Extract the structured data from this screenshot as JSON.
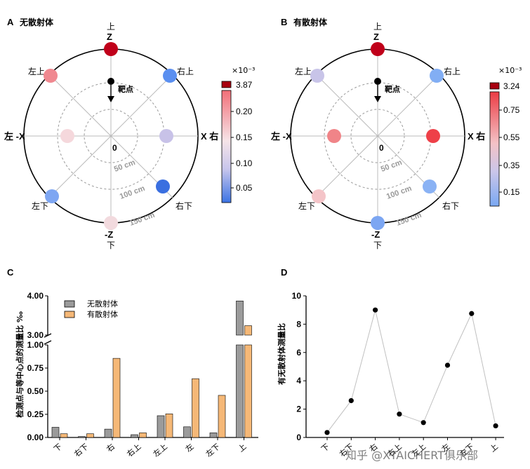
{
  "panels": {
    "A": {
      "label": "A",
      "title": "无散射体",
      "scale_multiplier": "×10⁻³",
      "colorbar_max": "3.87",
      "colorbar_ticks": [
        "0.20",
        "0.15",
        "0.10",
        "0.05"
      ],
      "target_label": "靶点",
      "center_label": "0",
      "rings": [
        "50 cm",
        "100 cm",
        "150 cm"
      ],
      "axis_labels": {
        "top_cn": "上",
        "top": "Z",
        "bottom": "-Z",
        "bottom_cn": "下",
        "left": "左 -X",
        "right": "X 右",
        "upper_left": "左上",
        "upper_right": "右上",
        "lower_left": "左下",
        "lower_right": "右下"
      },
      "points": [
        {
          "position": "上",
          "color": "#c0001a"
        },
        {
          "position": "右上",
          "color": "#5a8ff0"
        },
        {
          "position": "右",
          "color": "#c8c2e8"
        },
        {
          "position": "右下",
          "color": "#3a6fe0"
        },
        {
          "position": "下",
          "color": "#f2dade"
        },
        {
          "position": "左下",
          "color": "#7ea6f2"
        },
        {
          "position": "左",
          "color": "#f5d8dc"
        },
        {
          "position": "左上",
          "color": "#f08890"
        }
      ]
    },
    "B": {
      "label": "B",
      "title": "有散射体",
      "scale_multiplier": "×10⁻³",
      "colorbar_max": "3.24",
      "colorbar_ticks": [
        "0.75",
        "0.55",
        "0.35",
        "0.15"
      ],
      "target_label": "靶点",
      "center_label": "0",
      "rings": [
        "50 cm",
        "100 cm",
        "150 cm"
      ],
      "axis_labels": {
        "top_cn": "上",
        "top": "Z",
        "bottom": "-Z",
        "bottom_cn": "下",
        "left": "左 -X",
        "right": "X 右",
        "upper_left": "左上",
        "upper_right": "右上",
        "lower_left": "左下",
        "lower_right": "右下"
      },
      "points": [
        {
          "position": "上",
          "color": "#c0001a"
        },
        {
          "position": "右上",
          "color": "#82aef4"
        },
        {
          "position": "右",
          "color": "#ee4048"
        },
        {
          "position": "右下",
          "color": "#8ab2f4"
        },
        {
          "position": "下",
          "color": "#7ca6f2"
        },
        {
          "position": "左下",
          "color": "#f4c4c8"
        },
        {
          "position": "左",
          "color": "#f08488"
        },
        {
          "position": "左上",
          "color": "#c8c4e8"
        }
      ]
    },
    "C": {
      "label": "C"
    },
    "D": {
      "label": "D"
    }
  },
  "chart_data": [
    {
      "type": "bar",
      "panel": "C",
      "ylabel": "检测点与等中心点的测量比 ‰",
      "categories": [
        "下",
        "右下",
        "右",
        "右上",
        "左上",
        "左",
        "左下",
        "上"
      ],
      "series": [
        {
          "name": "无散射体",
          "color": "#9b9b9b",
          "values": [
            0.11,
            0.01,
            0.09,
            0.03,
            0.235,
            0.115,
            0.05,
            3.87
          ]
        },
        {
          "name": "有散射体",
          "color": "#f5b877",
          "values": [
            0.04,
            0.04,
            0.855,
            0.05,
            0.255,
            0.635,
            0.455,
            3.24
          ]
        }
      ],
      "y_axis_lower": {
        "range": [
          0,
          1.0
        ],
        "ticks": [
          "0.00",
          "0.25",
          "0.50",
          "0.75",
          "1.00"
        ]
      },
      "y_axis_upper": {
        "range": [
          3.0,
          4.0
        ],
        "ticks": [
          "3.00",
          "4.00"
        ]
      },
      "legend_position": "top-left"
    },
    {
      "type": "line",
      "panel": "D",
      "ylabel": "有无散射体测量比",
      "categories": [
        "下",
        "右下",
        "右",
        "右上",
        "左上",
        "左",
        "左下",
        "上"
      ],
      "values": [
        0.35,
        2.6,
        9.0,
        1.65,
        1.05,
        5.1,
        8.75,
        0.82
      ],
      "ylim": [
        0,
        10
      ],
      "yticks": [
        "0",
        "2",
        "4",
        "6",
        "8",
        "10"
      ],
      "line_color": "#c0c0c0",
      "marker_color": "#000000"
    }
  ],
  "watermark": "知乎 @XTAICHERT俱乐部"
}
